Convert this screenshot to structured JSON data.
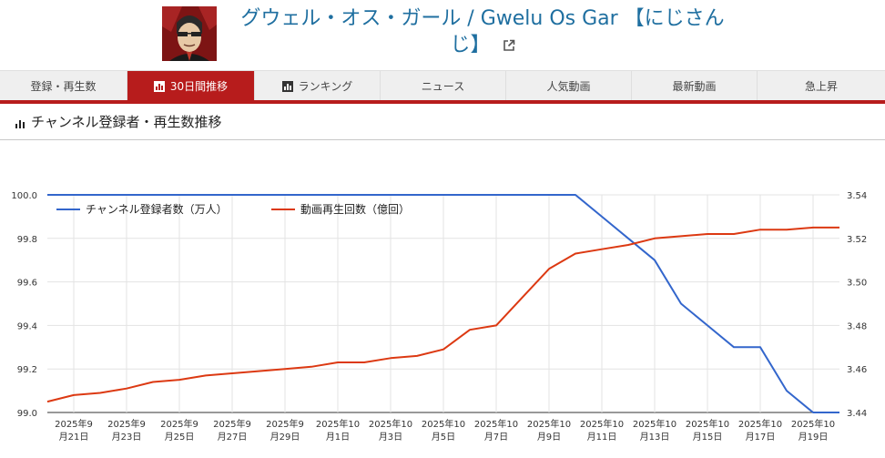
{
  "channel": {
    "title": "グウェル・オス・ガール / Gwelu Os Gar 【にじさんじ】",
    "avatar_icon": "channel-avatar",
    "external_link_icon": "external-link-icon"
  },
  "nav": {
    "accent": "#b71c1c",
    "items": [
      {
        "label": "登録・再生数",
        "active": false,
        "icon": ""
      },
      {
        "label": "30日間推移",
        "active": true,
        "icon": "bar-chart-icon"
      },
      {
        "label": "ランキング",
        "active": false,
        "icon": "bar-chart-icon"
      },
      {
        "label": "ニュース",
        "active": false,
        "icon": ""
      },
      {
        "label": "人気動画",
        "active": false,
        "icon": ""
      },
      {
        "label": "最新動画",
        "active": false,
        "icon": ""
      },
      {
        "label": "急上昇",
        "active": false,
        "icon": ""
      }
    ]
  },
  "section": {
    "title": "チャンネル登録者・再生数推移",
    "icon": "bar-chart-icon"
  },
  "chart_data": {
    "type": "line",
    "title": "",
    "legend_position": "top-left",
    "grid": true,
    "x_tick_labels": [
      [
        "2025年9",
        "月21日"
      ],
      [
        "2025年9",
        "月23日"
      ],
      [
        "2025年9",
        "月25日"
      ],
      [
        "2025年9",
        "月27日"
      ],
      [
        "2025年9",
        "月29日"
      ],
      [
        "2025年10",
        "月1日"
      ],
      [
        "2025年10",
        "月3日"
      ],
      [
        "2025年10",
        "月5日"
      ],
      [
        "2025年10",
        "月7日"
      ],
      [
        "2025年10",
        "月9日"
      ],
      [
        "2025年10",
        "月11日"
      ],
      [
        "2025年10",
        "月13日"
      ],
      [
        "2025年10",
        "月15日"
      ],
      [
        "2025年10",
        "月17日"
      ],
      [
        "2025年10",
        "月19日"
      ]
    ],
    "x": [
      "2025-09-20",
      "2025-09-21",
      "2025-09-22",
      "2025-09-23",
      "2025-09-24",
      "2025-09-25",
      "2025-09-26",
      "2025-09-27",
      "2025-09-28",
      "2025-09-29",
      "2025-09-30",
      "2025-10-01",
      "2025-10-02",
      "2025-10-03",
      "2025-10-04",
      "2025-10-05",
      "2025-10-06",
      "2025-10-07",
      "2025-10-08",
      "2025-10-09",
      "2025-10-10",
      "2025-10-11",
      "2025-10-12",
      "2025-10-13",
      "2025-10-14",
      "2025-10-15",
      "2025-10-16",
      "2025-10-17",
      "2025-10-18",
      "2025-10-19",
      "2025-10-20"
    ],
    "series": [
      {
        "name": "チャンネル登録者数（万人）",
        "axis": "left",
        "color": "#3366cc",
        "values": [
          100.0,
          100.0,
          100.0,
          100.0,
          100.0,
          100.0,
          100.0,
          100.0,
          100.0,
          100.0,
          100.0,
          100.0,
          100.0,
          100.0,
          100.0,
          100.0,
          100.0,
          100.0,
          100.0,
          100.0,
          100.0,
          99.9,
          99.8,
          99.7,
          99.5,
          99.4,
          99.3,
          99.3,
          99.1,
          99.0,
          99.0
        ]
      },
      {
        "name": "動画再生回数（億回）",
        "axis": "right",
        "color": "#dc3912",
        "values": [
          3.445,
          3.448,
          3.449,
          3.451,
          3.454,
          3.455,
          3.457,
          3.458,
          3.459,
          3.46,
          3.461,
          3.463,
          3.463,
          3.465,
          3.466,
          3.469,
          3.478,
          3.48,
          3.493,
          3.506,
          3.513,
          3.515,
          3.517,
          3.52,
          3.521,
          3.522,
          3.522,
          3.524,
          3.524,
          3.525,
          3.525
        ]
      }
    ],
    "y_left": {
      "min": 99.0,
      "max": 100.0,
      "ticks": [
        "100.0",
        "99.8",
        "99.6",
        "99.4",
        "99.2",
        "99.0"
      ]
    },
    "y_right": {
      "min": 3.44,
      "max": 3.54,
      "ticks": [
        "3.54",
        "3.52",
        "3.50",
        "3.48",
        "3.46",
        "3.44"
      ]
    }
  }
}
